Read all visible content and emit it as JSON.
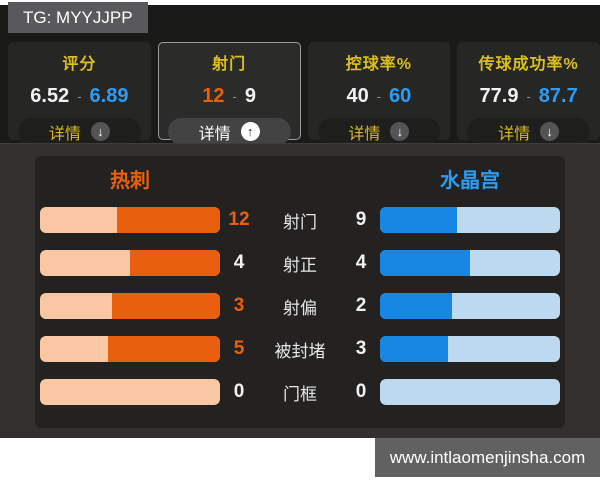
{
  "badge": {
    "label": "TG: MYYJJPP"
  },
  "value_separator": "-",
  "stat_cards": [
    {
      "title": "评分",
      "home_value": "6.52",
      "away_value": "6.89",
      "home_leading": false,
      "away_leading": true,
      "details_label": "详情",
      "expanded": false,
      "arrow_icon": "↓"
    },
    {
      "title": "射门",
      "home_value": "12",
      "away_value": "9",
      "home_leading": true,
      "away_leading": false,
      "details_label": "详情",
      "expanded": true,
      "arrow_icon": "↑"
    },
    {
      "title": "控球率%",
      "home_value": "40",
      "away_value": "60",
      "home_leading": false,
      "away_leading": true,
      "details_label": "详情",
      "expanded": false,
      "arrow_icon": "↓"
    },
    {
      "title": "传球成功率%",
      "home_value": "77.9",
      "away_value": "87.7",
      "home_leading": false,
      "away_leading": true,
      "details_label": "详情",
      "expanded": false,
      "arrow_icon": "↓"
    }
  ],
  "detail_panel": {
    "home_team": "热刺",
    "away_team": "水晶宫",
    "rows": [
      {
        "label": "射门",
        "home_value": "12",
        "away_value": "9",
        "home_pct": 57.1,
        "away_pct": 42.9,
        "home_leading": true,
        "away_leading": false
      },
      {
        "label": "射正",
        "home_value": "4",
        "away_value": "4",
        "home_pct": 50,
        "away_pct": 50,
        "home_leading": false,
        "away_leading": false
      },
      {
        "label": "射偏",
        "home_value": "3",
        "away_value": "2",
        "home_pct": 60,
        "away_pct": 40,
        "home_leading": true,
        "away_leading": false
      },
      {
        "label": "被封堵",
        "home_value": "5",
        "away_value": "3",
        "home_pct": 62.5,
        "away_pct": 37.5,
        "home_leading": true,
        "away_leading": false
      },
      {
        "label": "门框",
        "home_value": "0",
        "away_value": "0",
        "home_pct": 0,
        "away_pct": 0,
        "home_leading": false,
        "away_leading": false
      }
    ]
  },
  "watermark": {
    "text": "www.intlaomenjinsha.com"
  },
  "colors": {
    "home_accent": "#e8600d",
    "away_accent": "#2b9df4",
    "title_yellow": "#ddbf1c",
    "home_bar_bg": "#f9c7a4",
    "home_bar_fill": "#e8600d",
    "away_bar_bg": "#bcd9f0",
    "away_bar_fill": "#1787e3"
  },
  "chart_data": {
    "type": "bar",
    "orientation": "horizontal-paired",
    "title": "射门 详情",
    "categories": [
      "射门",
      "射正",
      "射偏",
      "被封堵",
      "门框"
    ],
    "series": [
      {
        "name": "热刺",
        "values": [
          12,
          4,
          3,
          5,
          0
        ],
        "color": "#e8600d"
      },
      {
        "name": "水晶宫",
        "values": [
          9,
          4,
          2,
          3,
          0
        ],
        "color": "#1787e3"
      }
    ],
    "note": "bar fill length = team share of row total, anchored toward center"
  }
}
